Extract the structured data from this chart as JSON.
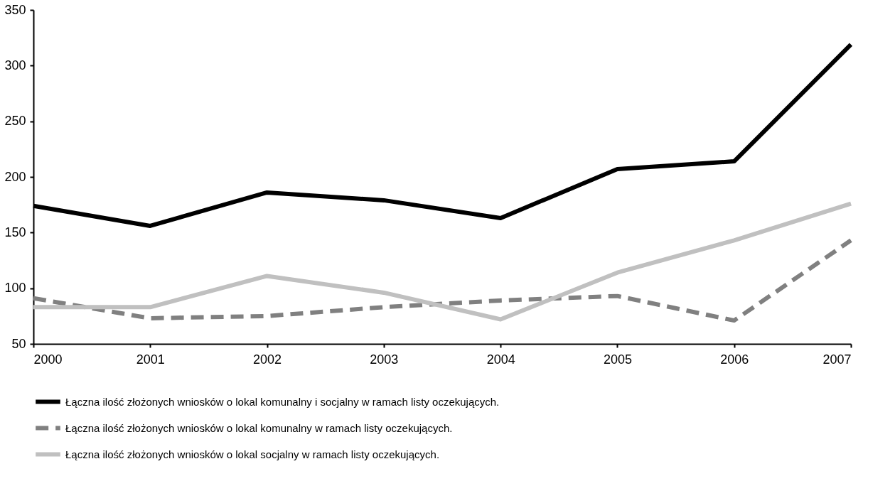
{
  "chart_data": {
    "type": "line",
    "x": [
      2000,
      2001,
      2002,
      2003,
      2004,
      2005,
      2006,
      2007
    ],
    "xlim": [
      2000,
      2007
    ],
    "xticks": [
      2000,
      2001,
      2002,
      2003,
      2004,
      2005,
      2006,
      2007
    ],
    "ylim": [
      50,
      350
    ],
    "yticks": [
      50,
      100,
      150,
      200,
      250,
      300,
      350
    ],
    "grid": false,
    "legend": "bottom",
    "marker": "none",
    "series": [
      {
        "name": "Łączna ilość złożonych wniosków o lokal komunalny i socjalny w ramach listy oczekujących.",
        "color": "#000000",
        "line_style": "solid",
        "values": [
          174,
          156,
          186,
          179,
          163,
          207,
          214,
          319
        ]
      },
      {
        "name": "Łączna ilość złożonych wniosków o lokal komunalny w ramach listy oczekujących.",
        "color": "#808080",
        "line_style": "dashed",
        "values": [
          91,
          73,
          75,
          83,
          89,
          93,
          71,
          143
        ]
      },
      {
        "name": "Łączna ilość złożonych wniosków o lokal socjalny w ramach listy oczekujących.",
        "color": "#c0c0c0",
        "line_style": "solid",
        "values": [
          83,
          83,
          111,
          96,
          72,
          114,
          143,
          176
        ]
      }
    ]
  }
}
